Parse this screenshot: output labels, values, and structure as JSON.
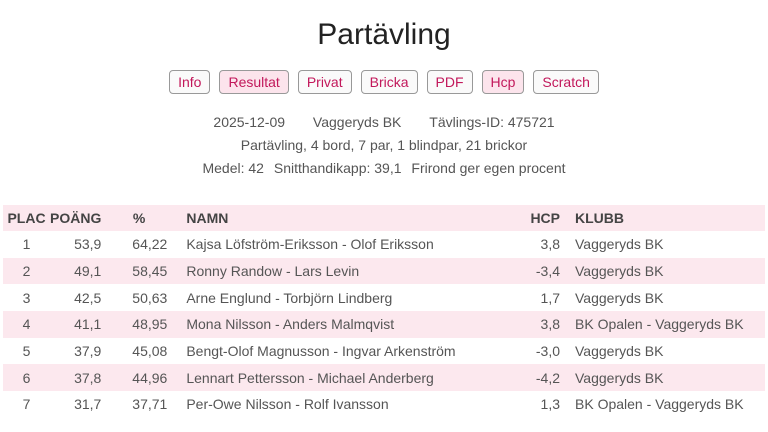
{
  "title": "Partävling",
  "buttons": [
    {
      "label": "Info",
      "active": false
    },
    {
      "label": "Resultat",
      "active": true
    },
    {
      "label": "Privat",
      "active": false
    },
    {
      "label": "Bricka",
      "active": false
    },
    {
      "label": "PDF",
      "active": false
    },
    {
      "label": "Hcp",
      "active": true
    },
    {
      "label": "Scratch",
      "active": false
    }
  ],
  "info": {
    "date": "2025-12-09",
    "club": "Vaggeryds BK",
    "id": "Tävlings-ID: 475721",
    "line2": "Partävling, 4 bord, 7 par, 1 blindpar, 21 brickor",
    "medel": "Medel: 42",
    "snitt": "Snitthandikapp: 39,1",
    "frirond": "Frirond ger egen procent"
  },
  "colors": {
    "accent": "#c2185b",
    "row_highlight": "#fce8ee"
  },
  "table": {
    "headers": [
      "PLAC",
      "POÄNG",
      "%",
      "NAMN",
      "HCP",
      "KLUBB"
    ],
    "rows": [
      [
        "1",
        "53,9",
        "64,22",
        "Kajsa Löfström-Eriksson - Olof Eriksson",
        "3,8",
        "Vaggeryds BK"
      ],
      [
        "2",
        "49,1",
        "58,45",
        "Ronny Randow - Lars Levin",
        "-3,4",
        "Vaggeryds BK"
      ],
      [
        "3",
        "42,5",
        "50,63",
        "Arne Englund - Torbjörn Lindberg",
        "1,7",
        "Vaggeryds BK"
      ],
      [
        "4",
        "41,1",
        "48,95",
        "Mona Nilsson - Anders Malmqvist",
        "3,8",
        "BK Opalen - Vaggeryds BK"
      ],
      [
        "5",
        "37,9",
        "45,08",
        "Bengt-Olof Magnusson - Ingvar Arkenström",
        "-3,0",
        "Vaggeryds BK"
      ],
      [
        "6",
        "37,8",
        "44,96",
        "Lennart Pettersson - Michael Anderberg",
        "-4,2",
        "Vaggeryds BK"
      ],
      [
        "7",
        "31,7",
        "37,71",
        "Per-Owe Nilsson - Rolf Ivansson",
        "1,3",
        "BK Opalen - Vaggeryds BK"
      ]
    ]
  }
}
